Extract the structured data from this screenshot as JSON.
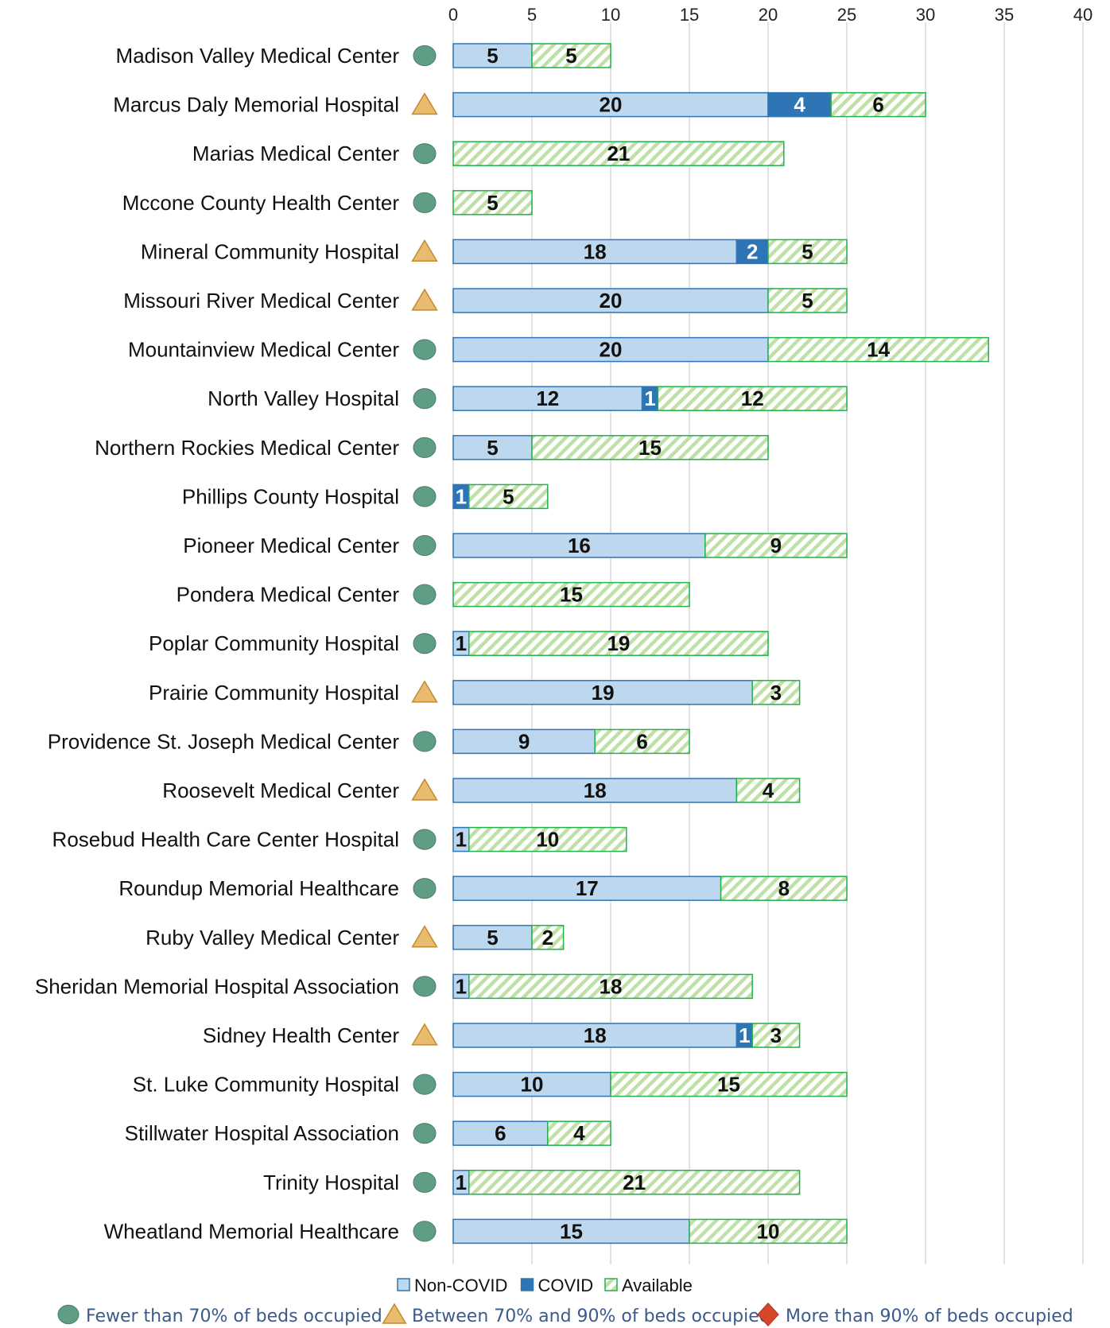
{
  "chart_data": {
    "type": "bar",
    "orientation": "horizontal",
    "stacked": true,
    "xlim": [
      0,
      40
    ],
    "x_ticks": [
      "0",
      "5",
      "10",
      "15",
      "20",
      "25",
      "30",
      "35",
      "40"
    ],
    "grid": true,
    "categories": [
      "Madison Valley Medical Center",
      "Marcus Daly Memorial Hospital",
      "Marias Medical Center",
      "Mccone County Health Center",
      "Mineral Community Hospital",
      "Missouri River Medical Center",
      "Mountainview Medical Center",
      "North Valley Hospital",
      "Northern Rockies Medical Center",
      "Phillips County Hospital",
      "Pioneer Medical Center",
      "Pondera Medical Center",
      "Poplar Community Hospital",
      "Prairie Community Hospital",
      "Providence St. Joseph Medical Center",
      "Roosevelt  Medical Center",
      "Rosebud Health Care Center Hospital",
      "Roundup Memorial Healthcare",
      "Ruby Valley Medical Center",
      "Sheridan Memorial Hospital Association",
      "Sidney Health Center",
      "St. Luke Community Hospital",
      "Stillwater Hospital Association",
      "Trinity Hospital",
      "Wheatland Memorial Healthcare"
    ],
    "status": [
      "low",
      "mid",
      "low",
      "low",
      "mid",
      "mid",
      "low",
      "low",
      "low",
      "low",
      "low",
      "low",
      "low",
      "mid",
      "low",
      "mid",
      "low",
      "low",
      "mid",
      "low",
      "mid",
      "low",
      "low",
      "low",
      "low"
    ],
    "series": [
      {
        "name": "Non-COVID",
        "color": "#bdd7ee",
        "edge": "#2e75b6",
        "values": [
          5,
          20,
          0,
          0,
          18,
          20,
          20,
          12,
          5,
          0,
          16,
          0,
          1,
          19,
          9,
          18,
          1,
          17,
          5,
          1,
          18,
          10,
          6,
          1,
          15
        ]
      },
      {
        "name": "COVID",
        "color": "#2e75b6",
        "edge": "#2e75b6",
        "values": [
          0,
          4,
          0,
          0,
          2,
          0,
          0,
          1,
          0,
          1,
          0,
          0,
          0,
          0,
          0,
          0,
          0,
          0,
          0,
          0,
          1,
          0,
          0,
          0,
          0
        ]
      },
      {
        "name": "Available",
        "color": "#c5e0b4",
        "edge": "#22b14c",
        "hatched": true,
        "values": [
          5,
          6,
          21,
          5,
          5,
          5,
          14,
          12,
          15,
          5,
          9,
          15,
          19,
          3,
          6,
          4,
          10,
          8,
          2,
          18,
          3,
          15,
          4,
          21,
          10
        ]
      }
    ],
    "legend_placement": "bottom-center"
  },
  "status_legend": [
    {
      "key": "low",
      "label": "Fewer than 70% of beds occupied",
      "color": "#5f9e85",
      "shape": "circle-icon"
    },
    {
      "key": "mid",
      "label": "Between 70% and 90% of beds occupied",
      "color": "#e8bb6e",
      "shape": "triangle-icon"
    },
    {
      "key": "high",
      "label": "More than 90% of beds occupied",
      "color": "#d9472b",
      "shape": "diamond-icon"
    }
  ]
}
